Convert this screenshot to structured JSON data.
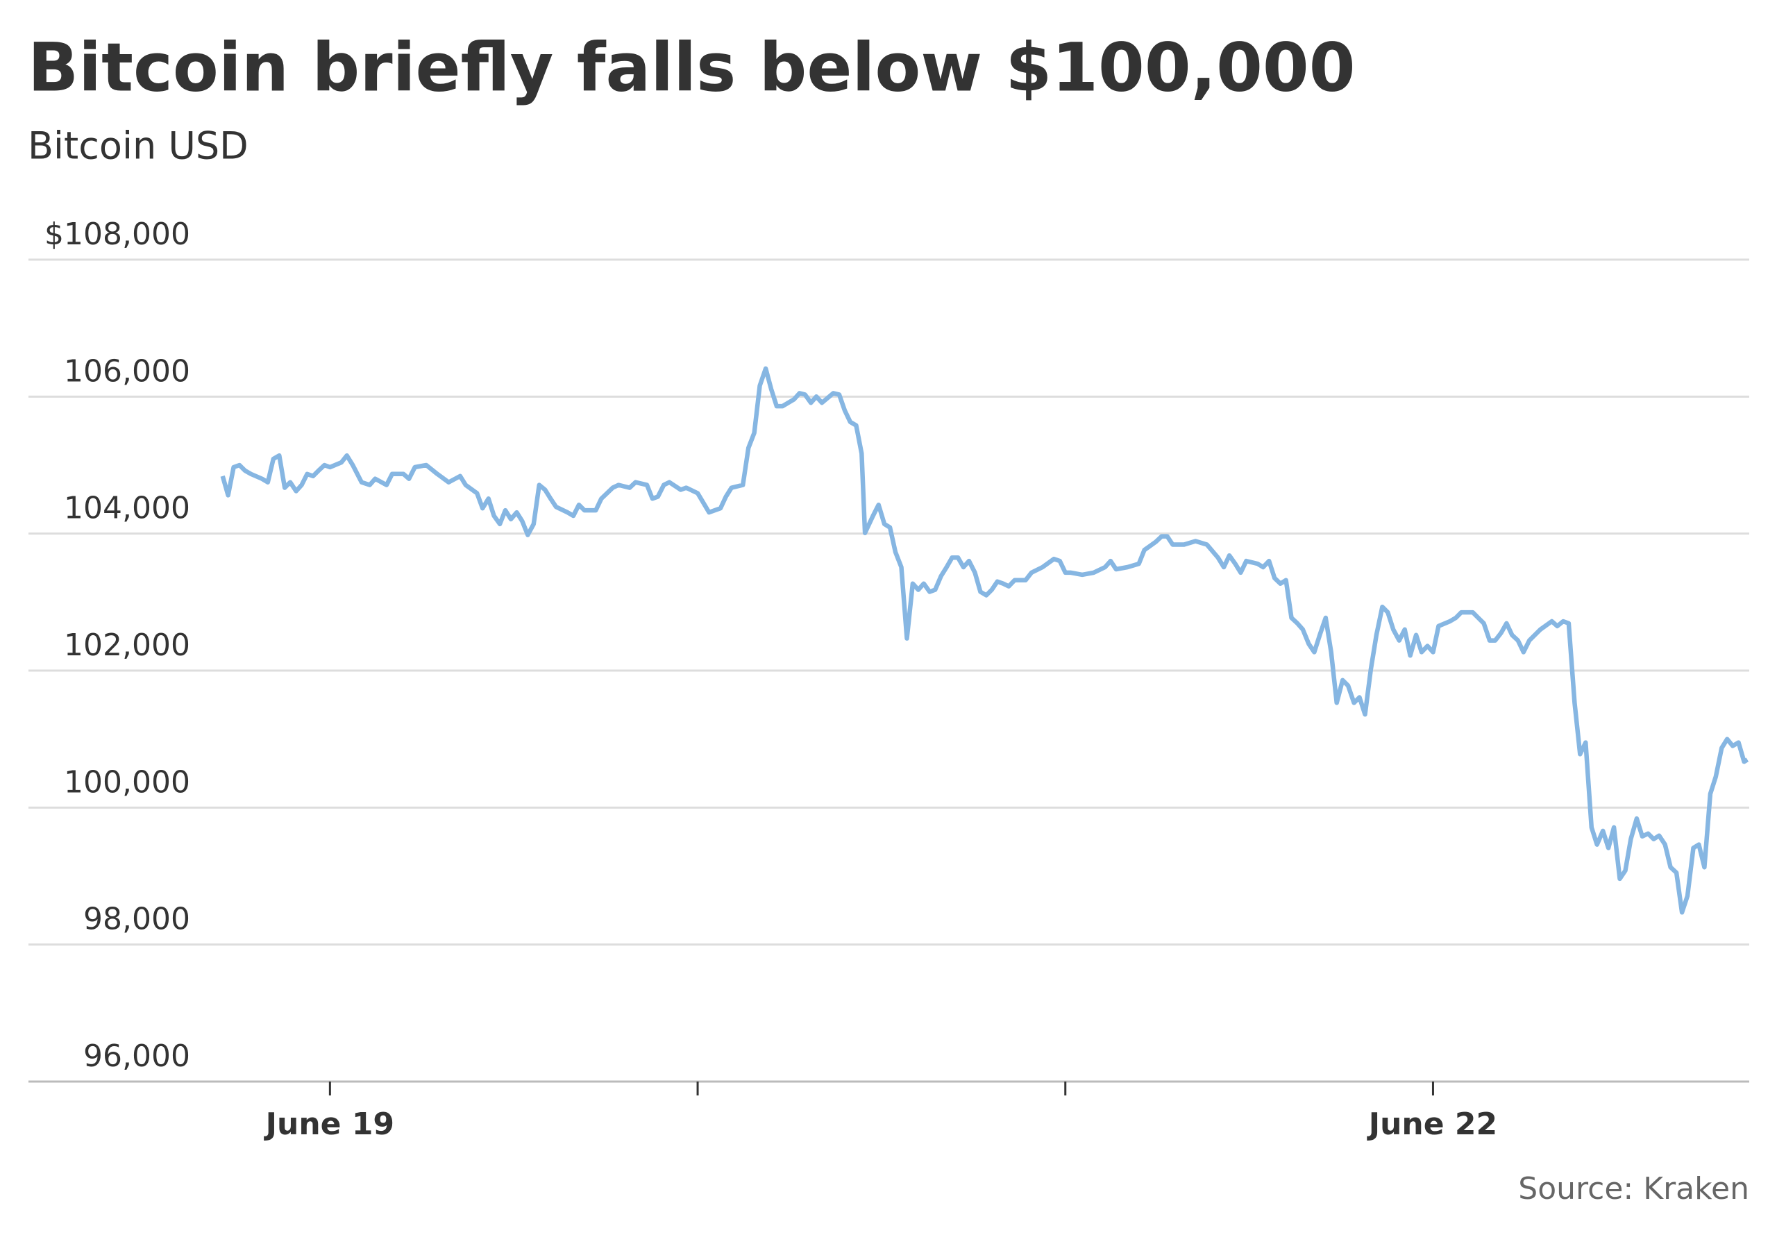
{
  "chart_data": {
    "type": "line",
    "title": "Bitcoin briefly falls below $100,000",
    "subtitle": "Bitcoin USD",
    "source": "Source: Kraken",
    "xlim": [
      18.18,
      22.86
    ],
    "xticks": [
      {
        "value": 19,
        "label": "June 19"
      },
      {
        "value": 20,
        "label": null
      },
      {
        "value": 21,
        "label": null
      },
      {
        "value": 22,
        "label": "June 22"
      }
    ],
    "ylim": [
      96000,
      108000
    ],
    "yticks": [
      {
        "value": 96000,
        "label": "96,000"
      },
      {
        "value": 98000,
        "label": "98,000"
      },
      {
        "value": 100000,
        "label": "100,000"
      },
      {
        "value": 102000,
        "label": "102,000"
      },
      {
        "value": 104000,
        "label": "104,000"
      },
      {
        "value": 106000,
        "label": "106,000"
      },
      {
        "value": 108000,
        "label": "$108,000"
      }
    ],
    "grid": true,
    "series": [
      {
        "name": "Bitcoin USD",
        "color": "#86b6e2",
        "x": [
          18.708,
          18.723,
          18.738,
          18.754,
          18.769,
          18.785,
          18.815,
          18.831,
          18.846,
          18.862,
          18.877,
          18.892,
          18.908,
          18.923,
          18.938,
          18.954,
          18.969,
          18.985,
          19.0,
          19.031,
          19.046,
          19.062,
          19.086,
          19.108,
          19.123,
          19.154,
          19.169,
          19.2,
          19.215,
          19.231,
          19.262,
          19.292,
          19.323,
          19.354,
          19.369,
          19.4,
          19.415,
          19.431,
          19.446,
          19.462,
          19.477,
          19.492,
          19.508,
          19.523,
          19.538,
          19.554,
          19.569,
          19.585,
          19.6,
          19.615,
          19.646,
          19.662,
          19.677,
          19.692,
          19.723,
          19.738,
          19.769,
          19.785,
          19.815,
          19.831,
          19.862,
          19.877,
          19.892,
          19.908,
          19.923,
          19.954,
          19.969,
          20.0,
          20.031,
          20.062,
          20.077,
          20.092,
          20.123,
          20.138,
          20.154,
          20.169,
          20.185,
          20.2,
          20.215,
          20.231,
          20.262,
          20.277,
          20.292,
          20.308,
          20.323,
          20.338,
          20.369,
          20.385,
          20.4,
          20.415,
          20.431,
          20.446,
          20.455,
          20.477,
          20.492,
          20.508,
          20.523,
          20.538,
          20.554,
          20.569,
          20.585,
          20.6,
          20.615,
          20.631,
          20.646,
          20.662,
          20.677,
          20.692,
          20.708,
          20.723,
          20.738,
          20.754,
          20.769,
          20.785,
          20.8,
          20.815,
          20.831,
          20.846,
          20.862,
          20.892,
          20.908,
          20.938,
          20.969,
          20.985,
          21.0,
          21.015,
          21.046,
          21.077,
          21.108,
          21.123,
          21.138,
          21.169,
          21.2,
          21.215,
          21.246,
          21.262,
          21.277,
          21.292,
          21.323,
          21.354,
          21.385,
          21.415,
          21.431,
          21.446,
          21.462,
          21.477,
          21.492,
          21.523,
          21.538,
          21.554,
          21.569,
          21.585,
          21.6,
          21.615,
          21.631,
          21.646,
          21.662,
          21.677,
          21.692,
          21.708,
          21.723,
          21.738,
          21.754,
          21.769,
          21.785,
          21.8,
          21.815,
          21.831,
          21.846,
          21.862,
          21.877,
          21.892,
          21.908,
          21.923,
          21.938,
          21.954,
          21.969,
          21.985,
          22.0,
          22.015,
          22.046,
          22.062,
          22.077,
          22.108,
          22.123,
          22.138,
          22.154,
          22.169,
          22.185,
          22.2,
          22.215,
          22.231,
          22.246,
          22.262,
          22.292,
          22.323,
          22.338,
          22.354,
          22.369,
          22.385,
          22.4,
          22.415,
          22.431,
          22.446,
          22.462,
          22.477,
          22.492,
          22.508,
          22.523,
          22.538,
          22.554,
          22.569,
          22.585,
          22.6,
          22.615,
          22.631,
          22.646,
          22.662,
          22.677,
          22.692,
          22.708,
          22.723,
          22.738,
          22.754,
          22.769,
          22.785,
          22.8,
          22.815,
          22.831,
          22.846,
          22.855
        ],
        "values": [
          104840,
          104560,
          104970,
          105000,
          104920,
          104870,
          104800,
          104750,
          105090,
          105140,
          104670,
          104750,
          104620,
          104710,
          104870,
          104840,
          104920,
          105000,
          104970,
          105040,
          105140,
          105000,
          104750,
          104710,
          104800,
          104710,
          104870,
          104870,
          104800,
          104970,
          105000,
          104870,
          104750,
          104840,
          104710,
          104590,
          104370,
          104510,
          104260,
          104140,
          104340,
          104210,
          104310,
          104180,
          103980,
          104140,
          104710,
          104640,
          104510,
          104390,
          104310,
          104260,
          104420,
          104340,
          104340,
          104510,
          104670,
          104710,
          104670,
          104750,
          104710,
          104510,
          104540,
          104710,
          104750,
          104640,
          104670,
          104590,
          104310,
          104370,
          104540,
          104670,
          104710,
          105250,
          105470,
          106160,
          106410,
          106110,
          105860,
          105860,
          105960,
          106050,
          106030,
          105910,
          106000,
          105910,
          106050,
          106030,
          105800,
          105630,
          105580,
          105170,
          104010,
          104260,
          104420,
          104140,
          104090,
          103730,
          103510,
          102470,
          103270,
          103180,
          103270,
          103150,
          103180,
          103380,
          103510,
          103650,
          103650,
          103510,
          103600,
          103430,
          103150,
          103100,
          103180,
          103300,
          103270,
          103230,
          103320,
          103320,
          103430,
          103510,
          103630,
          103600,
          103430,
          103430,
          103400,
          103430,
          103510,
          103600,
          103480,
          103510,
          103560,
          103760,
          103880,
          103960,
          103960,
          103840,
          103840,
          103890,
          103840,
          103650,
          103510,
          103680,
          103560,
          103430,
          103600,
          103560,
          103510,
          103600,
          103350,
          103270,
          103320,
          102770,
          102690,
          102600,
          102390,
          102270,
          102520,
          102770,
          102270,
          101530,
          101860,
          101780,
          101530,
          101610,
          101360,
          102020,
          102520,
          102930,
          102850,
          102600,
          102440,
          102600,
          102220,
          102520,
          102270,
          102360,
          102270,
          102650,
          102720,
          102770,
          102850,
          102850,
          102770,
          102690,
          102440,
          102440,
          102550,
          102690,
          102520,
          102440,
          102270,
          102440,
          102600,
          102720,
          102650,
          102720,
          102690,
          101530,
          100780,
          100950,
          99710,
          99460,
          99660,
          99410,
          99710,
          98960,
          99080,
          99540,
          99840,
          99580,
          99620,
          99540,
          99590,
          99460,
          99130,
          99050,
          98470,
          98710,
          99410,
          99460,
          99130,
          100200,
          100450,
          100870,
          101000,
          100900,
          100950,
          100670,
          100700
        ]
      }
    ]
  }
}
